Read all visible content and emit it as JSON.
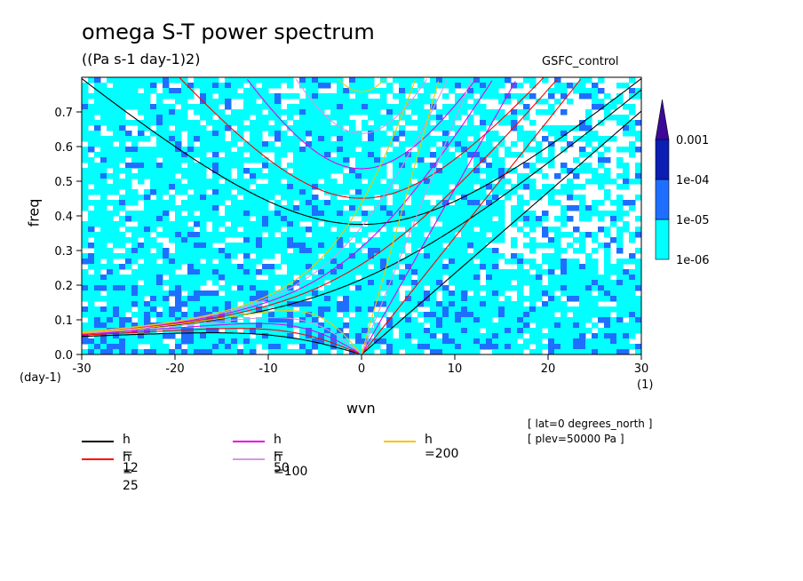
{
  "chart_data": {
    "type": "heatmap",
    "title": "omega S-T power spectrum",
    "subtitle": "((Pa s-1 day-1)2)",
    "dataset_label": "GSFC_control",
    "xlabel": "wvn",
    "ylabel": "freq",
    "x_units": "(1)",
    "y_units": "(day-1)",
    "xlim": [
      -30,
      30
    ],
    "ylim": [
      0,
      0.8
    ],
    "x_ticks": [
      "-30",
      "-20",
      "-10",
      "0",
      "10",
      "20",
      "30"
    ],
    "x_tick_values": [
      -30,
      -20,
      -10,
      0,
      10,
      20,
      30
    ],
    "y_ticks": [
      "0.0",
      "0.1",
      "0.2",
      "0.3",
      "0.4",
      "0.5",
      "0.6",
      "0.7"
    ],
    "y_tick_values": [
      0,
      0.1,
      0.2,
      0.3,
      0.4,
      0.5,
      0.6,
      0.7
    ],
    "colorbar": {
      "levels": [
        "1e-06",
        "1e-05",
        "1e-04",
        "0.001"
      ],
      "colors": [
        "#00ffff",
        "#1e6eff",
        "#0a1eb4",
        "#3c0a96"
      ]
    },
    "dispersion_curves": [
      {
        "name": "h = 12",
        "h": 12,
        "color": "#000000"
      },
      {
        "name": "h = 25",
        "h": 25,
        "color": "#ff0000"
      },
      {
        "name": "h = 50",
        "h": 50,
        "color": "#e600e6"
      },
      {
        "name": "h =100",
        "h": 100,
        "color": "#d796e6"
      },
      {
        "name": "h =200",
        "h": 200,
        "color": "#f0c800"
      }
    ],
    "annotations": [
      "[ lat=0 degrees_north ]",
      "[ plev=50000 Pa ]"
    ]
  }
}
